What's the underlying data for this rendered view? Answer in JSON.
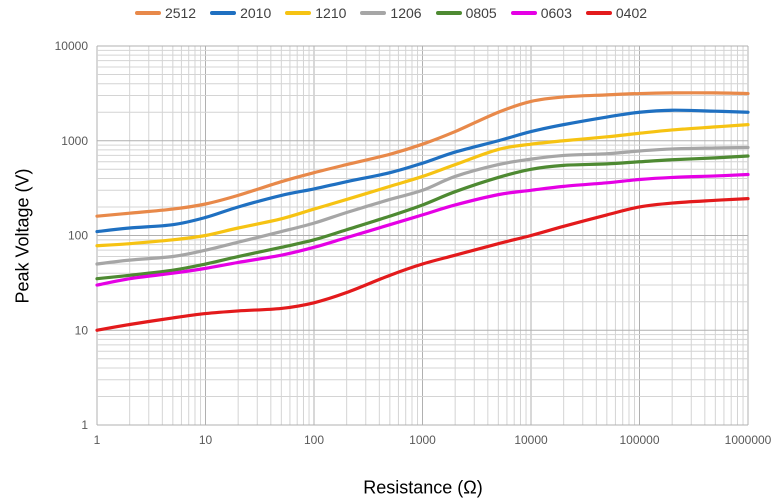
{
  "chart_data": {
    "type": "line",
    "title": "",
    "xlabel": "Resistance (Ω)",
    "ylabel": "Peak Voltage (V)",
    "xscale": "log",
    "yscale": "log",
    "xlim": [
      1,
      1000000
    ],
    "ylim": [
      1,
      10000
    ],
    "grid": true,
    "legend": "top",
    "x_ticks": [
      "1",
      "10",
      "100",
      "1000",
      "10000",
      "100000",
      "1000000"
    ],
    "y_ticks": [
      "1",
      "10",
      "100",
      "1000",
      "10000"
    ],
    "x": [
      1,
      2,
      5,
      10,
      20,
      50,
      100,
      200,
      500,
      1000,
      2000,
      5000,
      10000,
      20000,
      50000,
      100000,
      200000,
      500000,
      1000000
    ],
    "series": [
      {
        "name": "2512",
        "color": "#E8894A",
        "values": [
          160,
          172,
          190,
          215,
          265,
          370,
          460,
          560,
          720,
          920,
          1250,
          2000,
          2600,
          2900,
          3050,
          3150,
          3200,
          3200,
          3150
        ]
      },
      {
        "name": "2010",
        "color": "#1F70C1",
        "values": [
          110,
          120,
          130,
          155,
          200,
          265,
          310,
          370,
          460,
          580,
          760,
          1000,
          1250,
          1480,
          1780,
          2000,
          2100,
          2050,
          2000
        ]
      },
      {
        "name": "1210",
        "color": "#F6C313",
        "values": [
          78,
          82,
          90,
          100,
          120,
          150,
          190,
          240,
          330,
          420,
          560,
          810,
          920,
          1000,
          1100,
          1200,
          1300,
          1400,
          1480
        ]
      },
      {
        "name": "1206",
        "color": "#A6A6A6",
        "values": [
          50,
          55,
          60,
          70,
          85,
          110,
          135,
          175,
          240,
          300,
          420,
          560,
          640,
          700,
          730,
          780,
          820,
          840,
          850
        ]
      },
      {
        "name": "0805",
        "color": "#4E8A32",
        "values": [
          35,
          38,
          43,
          50,
          60,
          75,
          90,
          115,
          160,
          210,
          290,
          410,
          500,
          550,
          570,
          600,
          630,
          660,
          690
        ]
      },
      {
        "name": "0603",
        "color": "#E500E5",
        "values": [
          30,
          35,
          40,
          45,
          52,
          62,
          75,
          95,
          130,
          165,
          210,
          270,
          300,
          330,
          360,
          390,
          410,
          425,
          440
        ]
      },
      {
        "name": "0402",
        "color": "#E31A1C",
        "values": [
          10,
          11.5,
          13.5,
          15,
          16,
          17,
          19.5,
          25,
          38,
          50,
          62,
          82,
          100,
          125,
          165,
          200,
          220,
          235,
          245
        ]
      }
    ]
  }
}
